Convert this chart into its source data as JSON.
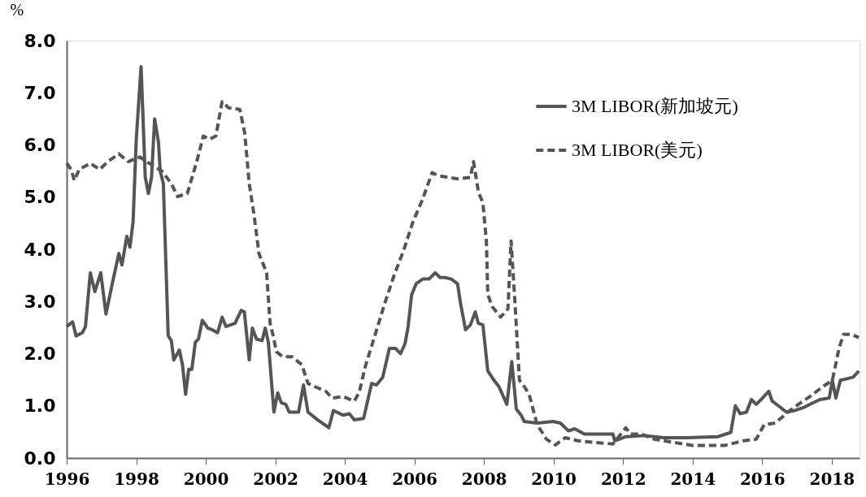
{
  "chart_data": {
    "type": "line",
    "ylabel": "%",
    "xlim": [
      1996,
      2018.8
    ],
    "xticks": [
      1996,
      1998,
      2000,
      2002,
      2004,
      2006,
      2008,
      2010,
      2012,
      2014,
      2016,
      2018
    ],
    "ylim": [
      0,
      8
    ],
    "yticks": [
      {
        "value": 0,
        "label": "0.0"
      },
      {
        "value": 1,
        "label": "1.0"
      },
      {
        "value": 2,
        "label": "2.0"
      },
      {
        "value": 3,
        "label": "3.0"
      },
      {
        "value": 4,
        "label": "4.0"
      },
      {
        "value": 5,
        "label": "5.0"
      },
      {
        "value": 6,
        "label": "6.0"
      },
      {
        "value": 7,
        "label": "7.0"
      },
      {
        "value": 8,
        "label": "8.0"
      }
    ],
    "grid": false,
    "legend": "top right",
    "marker": "none",
    "series": [
      {
        "name": "3M LIBOR(新加坡元)",
        "color": "#555555",
        "line_style": "solid",
        "x": [
          1996.0,
          1996.17,
          1996.27,
          1996.45,
          1996.54,
          1996.68,
          1996.81,
          1996.98,
          1997.13,
          1997.32,
          1997.5,
          1997.59,
          1997.73,
          1997.82,
          1997.91,
          1998.0,
          1998.14,
          1998.26,
          1998.35,
          1998.44,
          1998.53,
          1998.64,
          1998.69,
          1998.78,
          1998.92,
          1999.01,
          1999.08,
          1999.24,
          1999.33,
          1999.42,
          1999.51,
          1999.6,
          1999.7,
          1999.79,
          1999.9,
          2000.06,
          2000.18,
          2000.34,
          2000.47,
          2000.58,
          2000.84,
          2001.02,
          2001.11,
          2001.25,
          2001.34,
          2001.46,
          2001.62,
          2001.71,
          2001.8,
          2001.96,
          2002.07,
          2002.17,
          2002.3,
          2002.4,
          2002.67,
          2002.81,
          2002.94,
          2003.22,
          2003.54,
          2003.67,
          2003.95,
          2004.13,
          2004.27,
          2004.54,
          2004.77,
          2004.91,
          2005.09,
          2005.28,
          2005.46,
          2005.6,
          2005.73,
          2005.82,
          2005.92,
          2006.05,
          2006.24,
          2006.42,
          2006.6,
          2006.74,
          2006.88,
          2007.06,
          2007.24,
          2007.33,
          2007.47,
          2007.61,
          2007.75,
          2007.84,
          2007.97,
          2008.11,
          2008.29,
          2008.43,
          2008.66,
          2008.8,
          2008.93,
          2009.07,
          2009.16,
          2009.53,
          2009.99,
          2010.2,
          2010.43,
          2010.61,
          2010.89,
          2011.34,
          2011.71,
          2011.76,
          2012.08,
          2012.63,
          2013.17,
          2013.82,
          2014.73,
          2015.1,
          2015.23,
          2015.37,
          2015.55,
          2015.69,
          2015.83,
          2015.97,
          2016.19,
          2016.29,
          2016.47,
          2016.7,
          2016.93,
          2017.2,
          2017.38,
          2017.66,
          2017.93,
          2018.02,
          2018.12,
          2018.25,
          2018.44,
          2018.62,
          2018.78
        ],
        "values": [
          2.52,
          2.61,
          2.34,
          2.4,
          2.52,
          3.55,
          3.19,
          3.55,
          2.76,
          3.37,
          3.92,
          3.7,
          4.25,
          4.04,
          4.53,
          6.1,
          7.5,
          5.38,
          5.07,
          5.38,
          6.5,
          6.05,
          5.5,
          5.26,
          2.34,
          2.25,
          1.88,
          2.07,
          1.79,
          1.22,
          1.7,
          1.7,
          2.22,
          2.28,
          2.64,
          2.49,
          2.46,
          2.4,
          2.7,
          2.52,
          2.58,
          2.83,
          2.8,
          1.88,
          2.49,
          2.28,
          2.25,
          2.49,
          2.22,
          0.88,
          1.25,
          1.06,
          1.03,
          0.88,
          0.88,
          1.4,
          0.88,
          0.73,
          0.58,
          0.91,
          0.82,
          0.85,
          0.73,
          0.76,
          1.43,
          1.4,
          1.55,
          2.1,
          2.1,
          2.0,
          2.19,
          2.52,
          3.13,
          3.34,
          3.43,
          3.43,
          3.55,
          3.46,
          3.46,
          3.43,
          3.34,
          2.95,
          2.46,
          2.55,
          2.8,
          2.58,
          2.55,
          1.67,
          1.49,
          1.37,
          1.03,
          1.85,
          0.94,
          0.82,
          0.7,
          0.67,
          0.7,
          0.67,
          0.52,
          0.56,
          0.46,
          0.46,
          0.46,
          0.33,
          0.41,
          0.43,
          0.39,
          0.39,
          0.41,
          0.49,
          1.0,
          0.85,
          0.88,
          1.12,
          1.03,
          1.12,
          1.28,
          1.09,
          1.0,
          0.88,
          0.91,
          0.97,
          1.03,
          1.12,
          1.15,
          1.49,
          1.15,
          1.49,
          1.52,
          1.55,
          1.67
        ]
      },
      {
        "name": "3M LIBOR(美元)",
        "color": "#555555",
        "line_style": "dashed",
        "x": [
          1996.0,
          1996.13,
          1996.22,
          1996.36,
          1996.68,
          1996.95,
          1997.18,
          1997.5,
          1997.77,
          1998.1,
          1998.37,
          1998.74,
          1999.01,
          1999.19,
          1999.47,
          1999.74,
          1999.93,
          2000.11,
          2000.29,
          2000.47,
          2000.66,
          2000.98,
          2001.12,
          2001.25,
          2001.39,
          2001.53,
          2001.75,
          2001.85,
          2001.94,
          2002.03,
          2002.21,
          2002.48,
          2002.76,
          2002.94,
          2003.13,
          2003.45,
          2003.63,
          2003.95,
          2004.27,
          2004.41,
          2004.59,
          2004.86,
          2005.14,
          2005.41,
          2005.69,
          2005.96,
          2006.23,
          2006.51,
          2006.69,
          2006.97,
          2007.24,
          2007.61,
          2007.7,
          2007.84,
          2007.97,
          2008.07,
          2008.11,
          2008.25,
          2008.48,
          2008.69,
          2008.78,
          2008.89,
          2009.02,
          2009.16,
          2009.3,
          2009.53,
          2009.8,
          2010.05,
          2010.34,
          2010.7,
          2011.16,
          2011.71,
          2012.08,
          2012.21,
          2012.53,
          2012.9,
          2013.45,
          2014.0,
          2014.91,
          2015.46,
          2015.83,
          2016.06,
          2016.38,
          2016.74,
          2017.11,
          2017.38,
          2017.75,
          2018.02,
          2018.21,
          2018.34,
          2018.57,
          2018.78
        ],
        "values": [
          5.65,
          5.53,
          5.32,
          5.53,
          5.65,
          5.53,
          5.68,
          5.83,
          5.68,
          5.77,
          5.65,
          5.5,
          5.26,
          5.01,
          5.07,
          5.68,
          6.17,
          6.11,
          6.17,
          6.83,
          6.71,
          6.68,
          6.23,
          5.26,
          4.65,
          3.92,
          3.55,
          2.58,
          2.34,
          2.04,
          1.94,
          1.94,
          1.79,
          1.43,
          1.37,
          1.28,
          1.15,
          1.18,
          1.09,
          1.25,
          1.76,
          2.34,
          2.95,
          3.49,
          3.98,
          4.53,
          4.95,
          5.47,
          5.41,
          5.38,
          5.35,
          5.38,
          5.68,
          5.1,
          4.89,
          4.16,
          3.13,
          2.89,
          2.7,
          2.86,
          4.16,
          3.01,
          1.49,
          1.37,
          1.22,
          0.64,
          0.36,
          0.25,
          0.39,
          0.33,
          0.3,
          0.27,
          0.58,
          0.46,
          0.46,
          0.36,
          0.3,
          0.24,
          0.24,
          0.33,
          0.36,
          0.64,
          0.67,
          0.88,
          1.06,
          1.18,
          1.37,
          1.49,
          2.1,
          2.37,
          2.37,
          2.31
        ]
      }
    ]
  }
}
